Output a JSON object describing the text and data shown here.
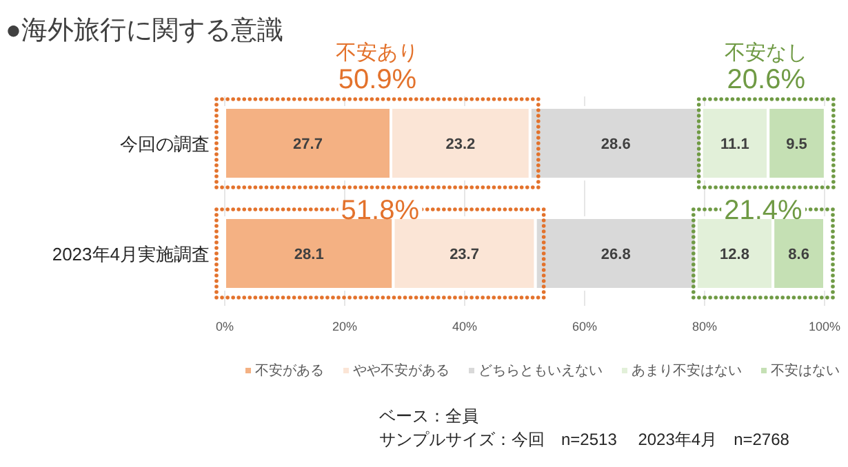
{
  "chart_data": {
    "type": "bar",
    "orientation": "horizontal",
    "stacked": true,
    "title": "●海外旅行に関する意識",
    "categories": [
      "今回の調査",
      "2023年4月実施調査"
    ],
    "series": [
      {
        "name": "不安がある",
        "color": "#f4b183",
        "values": [
          27.7,
          28.1
        ]
      },
      {
        "name": "やや不安がある",
        "color": "#fbe5d6",
        "values": [
          23.2,
          23.7
        ]
      },
      {
        "name": "どちらともいえない",
        "color": "#d9d9d9",
        "values": [
          28.6,
          26.8
        ]
      },
      {
        "name": "あまり不安はない",
        "color": "#e2f0d9",
        "values": [
          11.1,
          12.8
        ]
      },
      {
        "name": "不安はない",
        "color": "#c5e0b4",
        "values": [
          9.5,
          8.6
        ]
      }
    ],
    "xlim": [
      0,
      100
    ],
    "xticks": [
      {
        "value": 0,
        "label": "0%"
      },
      {
        "value": 20,
        "label": "20%"
      },
      {
        "value": 40,
        "label": "40%"
      },
      {
        "value": 60,
        "label": "60%"
      },
      {
        "value": 80,
        "label": "80%"
      },
      {
        "value": 100,
        "label": "100%"
      }
    ],
    "grid": "x",
    "legend": "bottom",
    "data_labels": true,
    "annotations": [
      "不安あり",
      "50.9%",
      "不安なし",
      "20.6%",
      "51.8%",
      "21.4%",
      "ベース：全員",
      "サンプルサイズ：今回　n=2513　 2023年4月　n=2768"
    ]
  }
}
